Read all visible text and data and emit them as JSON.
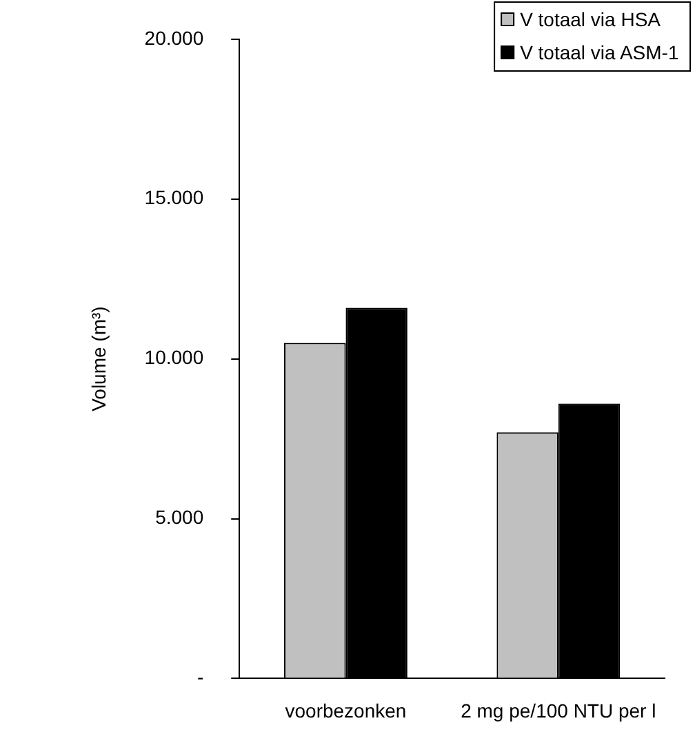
{
  "chart_data": {
    "type": "bar",
    "ylabel": "Volume (m³)",
    "categories": [
      "voorbezonken",
      "2 mg pe/100 NTU per l"
    ],
    "series": [
      {
        "name": "V totaal via HSA",
        "color": "#c0c0c0",
        "values": [
          10500,
          7700
        ]
      },
      {
        "name": "V totaal via ASM-1",
        "color": "#000000",
        "values": [
          11600,
          8600
        ]
      }
    ],
    "ylim": [
      0,
      20000
    ],
    "yticks": [
      {
        "value": 0,
        "label": "-"
      },
      {
        "value": 5000,
        "label": "5.000"
      },
      {
        "value": 10000,
        "label": "10.000"
      },
      {
        "value": 15000,
        "label": "15.000"
      },
      {
        "value": 20000,
        "label": "20.000"
      }
    ],
    "grid": false,
    "legend": "top right"
  }
}
